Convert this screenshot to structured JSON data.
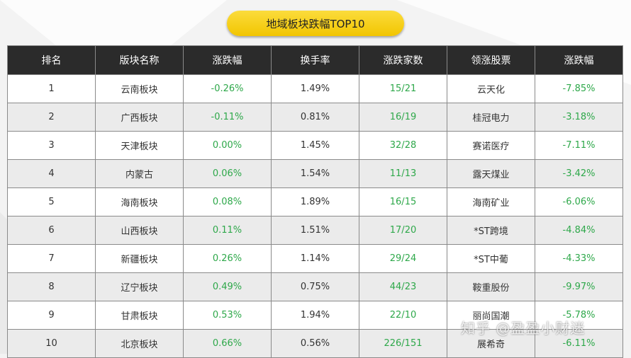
{
  "title": "地域板块跌幅TOP10",
  "headers": [
    "排名",
    "版块名称",
    "涨跌幅",
    "换手率",
    "涨跌家数",
    "领涨股票",
    "涨跌幅"
  ],
  "rows": [
    [
      "1",
      "云南板块",
      "-0.26%",
      "1.49%",
      "15/21",
      "云天化",
      "-7.85%"
    ],
    [
      "2",
      "广西板块",
      "-0.11%",
      "0.81%",
      "16/19",
      "桂冠电力",
      "-3.18%"
    ],
    [
      "3",
      "天津板块",
      "0.00%",
      "1.45%",
      "32/28",
      "赛诺医疗",
      "-7.11%"
    ],
    [
      "4",
      "内蒙古",
      "0.06%",
      "1.54%",
      "11/13",
      "露天煤业",
      "-3.42%"
    ],
    [
      "5",
      "海南板块",
      "0.08%",
      "1.89%",
      "16/15",
      "海南矿业",
      "-6.06%"
    ],
    [
      "6",
      "山西板块",
      "0.11%",
      "1.51%",
      "17/20",
      "*ST跨境",
      "-4.84%"
    ],
    [
      "7",
      "新疆板块",
      "0.26%",
      "1.14%",
      "29/24",
      "*ST中葡",
      "-4.33%"
    ],
    [
      "8",
      "辽宁板块",
      "0.49%",
      "0.75%",
      "44/23",
      "鞍重股份",
      "-9.97%"
    ],
    [
      "9",
      "甘肃板块",
      "0.53%",
      "1.94%",
      "22/10",
      "丽尚国潮",
      "-5.78%"
    ],
    [
      "10",
      "北京板块",
      "0.66%",
      "0.56%",
      "226/151",
      "展希奇",
      "-6.11%"
    ]
  ],
  "watermark": "知乎 @盈盈小财迷",
  "colors": {
    "header_bg": "#2b2b2b",
    "pill": "#f2c500",
    "green": "#2ea84a"
  }
}
